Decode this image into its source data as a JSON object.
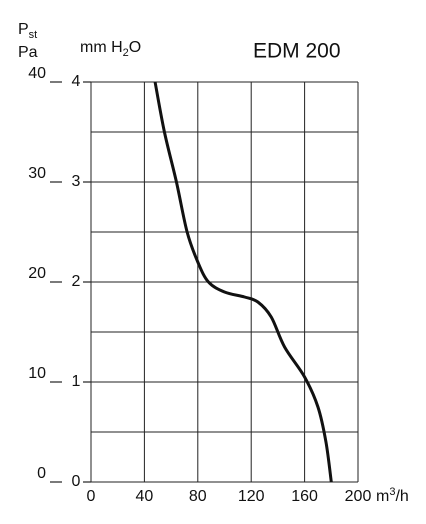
{
  "chart_data": {
    "type": "line",
    "title": "EDM 200",
    "ylabel_parts": [
      "P",
      "st"
    ],
    "yunit": "Pa",
    "y2label_parts": [
      "mm H",
      "2",
      "O"
    ],
    "xlabel_parts": [
      "m",
      "3",
      "/h"
    ],
    "xlim": [
      0,
      200
    ],
    "xticks": [
      0,
      40,
      80,
      120,
      160,
      200
    ],
    "ylim": [
      0,
      40
    ],
    "yticks": [
      0,
      10,
      20,
      30,
      40
    ],
    "y2lim": [
      0,
      4
    ],
    "y2ticks": [
      0,
      1,
      2,
      3,
      4
    ],
    "grid_y": [
      0,
      5,
      10,
      15,
      20,
      25,
      30,
      35,
      40
    ],
    "grid": true,
    "series": [
      {
        "color": "#111111",
        "x": [
          48,
          55,
          64,
          72,
          80,
          88,
          100,
          115,
          125,
          135,
          145,
          160,
          170,
          176,
          180
        ],
        "values": [
          40,
          35,
          30,
          25,
          22,
          20,
          19,
          18.5,
          18,
          16.5,
          13.5,
          10.5,
          7.5,
          4,
          0
        ]
      }
    ]
  }
}
